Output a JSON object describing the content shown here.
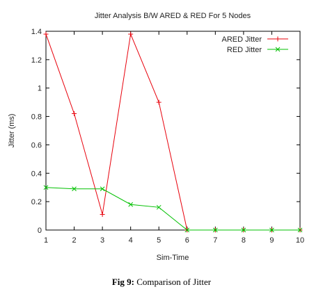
{
  "chart_data": {
    "type": "line",
    "title": "Jitter Analysis B/W ARED & RED For 5 Nodes",
    "xlabel": "Sim-Time",
    "ylabel": "Jitter (ms)",
    "x": [
      1,
      2,
      3,
      4,
      5,
      6,
      7,
      8,
      9,
      10
    ],
    "xlim": [
      1,
      10
    ],
    "ylim": [
      0,
      1.4
    ],
    "xticks": [
      "1",
      "2",
      "3",
      "4",
      "5",
      "6",
      "7",
      "8",
      "9",
      "10"
    ],
    "yticks": [
      "0",
      "0.2",
      "0.4",
      "0.6",
      "0.8",
      "1",
      "1.2",
      "1.4"
    ],
    "grid": false,
    "legend_position": "top-right",
    "series": [
      {
        "name": "ARED Jitter",
        "color": "#e8000b",
        "marker": "plus",
        "values": [
          1.38,
          0.82,
          0.11,
          1.38,
          0.9,
          0.0,
          0.0,
          0.0,
          0.0,
          0.0
        ]
      },
      {
        "name": "RED Jitter",
        "color": "#00c000",
        "marker": "x",
        "values": [
          0.3,
          0.29,
          0.29,
          0.18,
          0.16,
          0.0,
          0.0,
          0.0,
          0.0,
          0.0
        ]
      }
    ]
  },
  "caption": {
    "label": "Fig 9:",
    "text": " Comparison of Jitter"
  }
}
